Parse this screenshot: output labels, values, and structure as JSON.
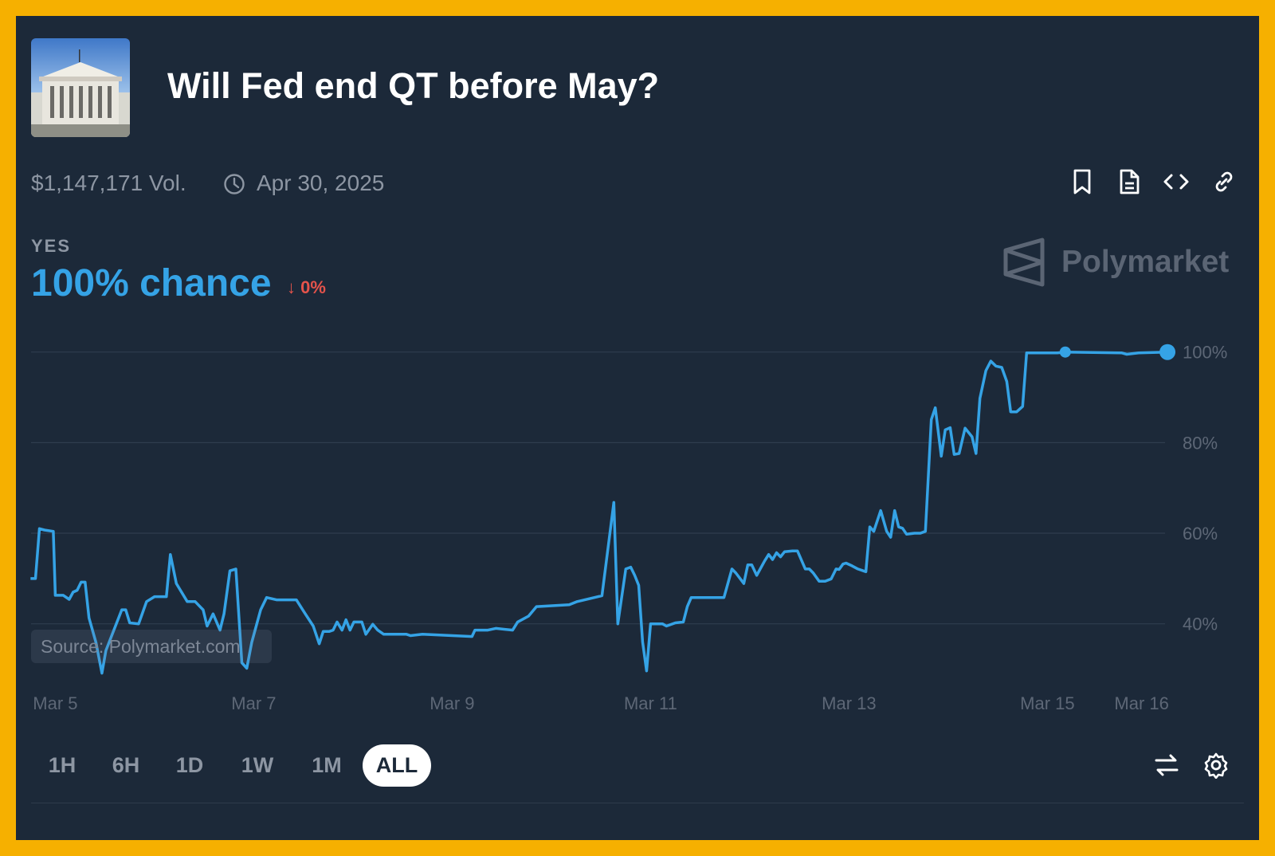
{
  "header": {
    "title": "Will Fed end QT before May?",
    "thumbnail_alt": "Federal Reserve building"
  },
  "meta": {
    "volume": "$1,147,171 Vol.",
    "end_date": "Apr 30, 2025",
    "icons": [
      "bookmark-icon",
      "document-icon",
      "code-embed-icon",
      "link-icon"
    ]
  },
  "outcome": {
    "label": "YES",
    "chance": "100% chance",
    "change": "0%",
    "change_direction": "down"
  },
  "brand": {
    "name": "Polymarket"
  },
  "source": "Source: Polymarket.com",
  "range_buttons": [
    "1H",
    "6H",
    "1D",
    "1W",
    "1M",
    "ALL"
  ],
  "active_range": "ALL",
  "colors": {
    "line": "#35a3e6",
    "negative": "#e5534b",
    "frame": "#f6b000",
    "background": "#1c2939"
  },
  "chart_data": {
    "type": "line",
    "title": "Will Fed end QT before May?",
    "xlabel": "",
    "ylabel": "",
    "x_unit": "days since Mar 5",
    "ylim": [
      0,
      100
    ],
    "xlim": [
      -0.25,
      11.21
    ],
    "y_ticks": [
      {
        "v": 100,
        "label": "100%"
      },
      {
        "v": 80,
        "label": "80%"
      },
      {
        "v": 60,
        "label": "60%"
      },
      {
        "v": 40,
        "label": "40%"
      }
    ],
    "x_ticks": [
      {
        "t": 0,
        "label": "Mar 5"
      },
      {
        "t": 2,
        "label": "Mar 7"
      },
      {
        "t": 4,
        "label": "Mar 9"
      },
      {
        "t": 6,
        "label": "Mar 11"
      },
      {
        "t": 8,
        "label": "Mar 13"
      },
      {
        "t": 10,
        "label": "Mar 15"
      },
      {
        "t": 10.95,
        "label": "Mar 16"
      }
    ],
    "grid": true,
    "series": [
      {
        "name": "YES",
        "points": [
          [
            -0.25,
            50
          ],
          [
            -0.2,
            50
          ],
          [
            -0.16,
            61
          ],
          [
            -0.11,
            60.7
          ],
          [
            -0.02,
            60.4
          ],
          [
            0,
            46.3
          ],
          [
            0.08,
            46.3
          ],
          [
            0.14,
            45.4
          ],
          [
            0.18,
            47
          ],
          [
            0.22,
            47.4
          ],
          [
            0.26,
            49.2
          ],
          [
            0.3,
            49.2
          ],
          [
            0.34,
            41.3
          ],
          [
            0.41,
            35.9
          ],
          [
            0.47,
            29.1
          ],
          [
            0.51,
            34.1
          ],
          [
            0.67,
            43.1
          ],
          [
            0.71,
            43.1
          ],
          [
            0.75,
            40.2
          ],
          [
            0.84,
            40
          ],
          [
            0.92,
            44.9
          ],
          [
            1,
            46
          ],
          [
            1.12,
            46
          ],
          [
            1.16,
            55.3
          ],
          [
            1.22,
            48.9
          ],
          [
            1.33,
            44.9
          ],
          [
            1.41,
            44.9
          ],
          [
            1.49,
            43.1
          ],
          [
            1.53,
            39.5
          ],
          [
            1.59,
            42.2
          ],
          [
            1.66,
            38.6
          ],
          [
            1.7,
            42.2
          ],
          [
            1.76,
            51.7
          ],
          [
            1.82,
            52.1
          ],
          [
            1.88,
            31.4
          ],
          [
            1.93,
            30.2
          ],
          [
            1.98,
            35.9
          ],
          [
            2.07,
            43.1
          ],
          [
            2.13,
            45.8
          ],
          [
            2.23,
            45.3
          ],
          [
            2.43,
            45.3
          ],
          [
            2.52,
            42.2
          ],
          [
            2.6,
            39.5
          ],
          [
            2.66,
            35.6
          ],
          [
            2.7,
            38.3
          ],
          [
            2.76,
            38.3
          ],
          [
            2.8,
            38.6
          ],
          [
            2.84,
            40.4
          ],
          [
            2.89,
            38.6
          ],
          [
            2.93,
            40.9
          ],
          [
            2.97,
            38.6
          ],
          [
            3.01,
            40.4
          ],
          [
            3.09,
            40.4
          ],
          [
            3.13,
            37.7
          ],
          [
            3.2,
            39.9
          ],
          [
            3.25,
            38.6
          ],
          [
            3.31,
            37.7
          ],
          [
            3.54,
            37.7
          ],
          [
            3.58,
            37.4
          ],
          [
            3.7,
            37.7
          ],
          [
            4.2,
            37.2
          ],
          [
            4.23,
            38.6
          ],
          [
            4.36,
            38.6
          ],
          [
            4.44,
            39
          ],
          [
            4.61,
            38.6
          ],
          [
            4.66,
            40.4
          ],
          [
            4.77,
            41.7
          ],
          [
            4.85,
            43.8
          ],
          [
            5.18,
            44.2
          ],
          [
            5.26,
            44.9
          ],
          [
            5.51,
            46.2
          ],
          [
            5.63,
            66.8
          ],
          [
            5.67,
            40
          ],
          [
            5.75,
            52.1
          ],
          [
            5.8,
            52.5
          ],
          [
            5.84,
            50.7
          ],
          [
            5.88,
            48.5
          ],
          [
            5.92,
            36
          ],
          [
            5.96,
            29.6
          ],
          [
            6,
            40
          ],
          [
            6.12,
            40
          ],
          [
            6.16,
            39.5
          ],
          [
            6.25,
            40.2
          ],
          [
            6.33,
            40.4
          ],
          [
            6.37,
            43.8
          ],
          [
            6.41,
            45.8
          ],
          [
            6.74,
            45.8
          ],
          [
            6.82,
            52.1
          ],
          [
            6.86,
            51.2
          ],
          [
            6.94,
            48.9
          ],
          [
            6.98,
            53
          ],
          [
            7.02,
            53
          ],
          [
            7.07,
            50.7
          ],
          [
            7.15,
            53.9
          ],
          [
            7.19,
            55.3
          ],
          [
            7.23,
            54.2
          ],
          [
            7.27,
            55.7
          ],
          [
            7.31,
            54.8
          ],
          [
            7.35,
            55.9
          ],
          [
            7.43,
            56.1
          ],
          [
            7.48,
            56.1
          ],
          [
            7.56,
            52.1
          ],
          [
            7.6,
            52.1
          ],
          [
            7.64,
            51.2
          ],
          [
            7.7,
            49.4
          ],
          [
            7.76,
            49.4
          ],
          [
            7.82,
            49.9
          ],
          [
            7.87,
            52.1
          ],
          [
            7.9,
            52
          ],
          [
            7.94,
            53.2
          ],
          [
            7.97,
            53.4
          ],
          [
            8.03,
            52.8
          ],
          [
            8.09,
            52.1
          ],
          [
            8.17,
            51.5
          ],
          [
            8.21,
            61.4
          ],
          [
            8.25,
            60.4
          ],
          [
            8.32,
            65
          ],
          [
            8.38,
            60.4
          ],
          [
            8.42,
            59.1
          ],
          [
            8.46,
            65
          ],
          [
            8.5,
            61.4
          ],
          [
            8.54,
            61.1
          ],
          [
            8.58,
            59.8
          ],
          [
            8.66,
            60
          ],
          [
            8.72,
            60
          ],
          [
            8.77,
            60.4
          ],
          [
            8.83,
            85.1
          ],
          [
            8.87,
            87.7
          ],
          [
            8.93,
            77
          ],
          [
            8.97,
            82.8
          ],
          [
            9.02,
            83.3
          ],
          [
            9.06,
            77.4
          ],
          [
            9.11,
            77.6
          ],
          [
            9.17,
            83.2
          ],
          [
            9.24,
            81.3
          ],
          [
            9.28,
            77.6
          ],
          [
            9.32,
            89.8
          ],
          [
            9.38,
            95.9
          ],
          [
            9.43,
            98
          ],
          [
            9.48,
            96.9
          ],
          [
            9.54,
            96.6
          ],
          [
            9.59,
            93.5
          ],
          [
            9.63,
            86.8
          ],
          [
            9.69,
            86.8
          ],
          [
            9.75,
            88
          ],
          [
            9.79,
            99.8
          ],
          [
            10.1,
            99.8
          ],
          [
            10.18,
            100
          ],
          [
            10.75,
            99.8
          ],
          [
            10.8,
            99.5
          ],
          [
            10.92,
            99.8
          ],
          [
            11.21,
            100
          ]
        ]
      }
    ],
    "markers": [
      {
        "t": 10.18,
        "v": 100
      },
      {
        "t": 11.21,
        "v": 100
      }
    ],
    "legend": "none"
  }
}
